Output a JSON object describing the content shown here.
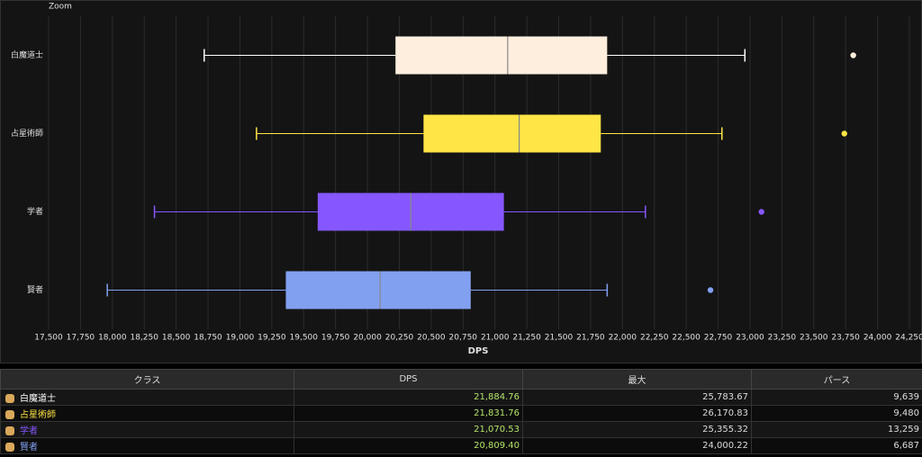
{
  "chart_data": {
    "type": "box",
    "zoom_label": "Zoom",
    "xlabel": "DPS",
    "categories": [
      "白魔道士",
      "占星術師",
      "学者",
      "賢者"
    ],
    "boxes": [
      {
        "color": "#fdeedd",
        "stroke": "#ffffff",
        "min": 18720,
        "q1": 20220,
        "median": 21100,
        "q3": 21880,
        "max": 22960,
        "outliers": [
          23810
        ]
      },
      {
        "color": "#ffe545",
        "stroke": "#ffe545",
        "min": 19130,
        "q1": 20440,
        "median": 21190,
        "q3": 21830,
        "max": 22780,
        "outliers": [
          23740
        ]
      },
      {
        "color": "#8657ff",
        "stroke": "#8657ff",
        "min": 18330,
        "q1": 19610,
        "median": 20340,
        "q3": 21070,
        "max": 22180,
        "outliers": [
          23090
        ]
      },
      {
        "color": "#82a0f0",
        "stroke": "#82a0f0",
        "min": 17960,
        "q1": 19360,
        "median": 20100,
        "q3": 20810,
        "max": 21880,
        "outliers": [
          22690
        ]
      }
    ],
    "xlim": [
      17500,
      24250
    ],
    "xticks": [
      {
        "value": 17500,
        "label": "17,500"
      },
      {
        "value": 17750,
        "label": "17,750"
      },
      {
        "value": 18000,
        "label": "18,000"
      },
      {
        "value": 18250,
        "label": "18,250"
      },
      {
        "value": 18500,
        "label": "18,500"
      },
      {
        "value": 18750,
        "label": "18,750"
      },
      {
        "value": 19000,
        "label": "19,000"
      },
      {
        "value": 19250,
        "label": "19,250"
      },
      {
        "value": 19500,
        "label": "19,500"
      },
      {
        "value": 19750,
        "label": "19,750"
      },
      {
        "value": 20000,
        "label": "20,000"
      },
      {
        "value": 20250,
        "label": "20,250"
      },
      {
        "value": 20500,
        "label": "20,500"
      },
      {
        "value": 20750,
        "label": "20,750"
      },
      {
        "value": 21000,
        "label": "21,000"
      },
      {
        "value": 21250,
        "label": "21,250"
      },
      {
        "value": 21500,
        "label": "21,500"
      },
      {
        "value": 21750,
        "label": "21,750"
      },
      {
        "value": 22000,
        "label": "22,000"
      },
      {
        "value": 22250,
        "label": "22,250"
      },
      {
        "value": 22500,
        "label": "22,500"
      },
      {
        "value": 22750,
        "label": "22,750"
      },
      {
        "value": 23000,
        "label": "23,000"
      },
      {
        "value": 23250,
        "label": "23,250"
      },
      {
        "value": 23500,
        "label": "23,500"
      },
      {
        "value": 23750,
        "label": "23,750"
      },
      {
        "value": 24000,
        "label": "24,000"
      },
      {
        "value": 24250,
        "label": "24,250"
      }
    ],
    "grid": true
  },
  "table": {
    "headers": [
      "クラス",
      "DPS",
      "最大",
      "パース"
    ],
    "rows": [
      [
        "白魔道士",
        "21,884.76",
        "25,783.67",
        "9,639"
      ],
      [
        "占星術師",
        "21,831.76",
        "26,170.83",
        "9,480"
      ],
      [
        "学者",
        "21,070.53",
        "25,355.32",
        "13,259"
      ],
      [
        "賢者",
        "20,809.40",
        "24,000.22",
        "6,687"
      ]
    ]
  }
}
